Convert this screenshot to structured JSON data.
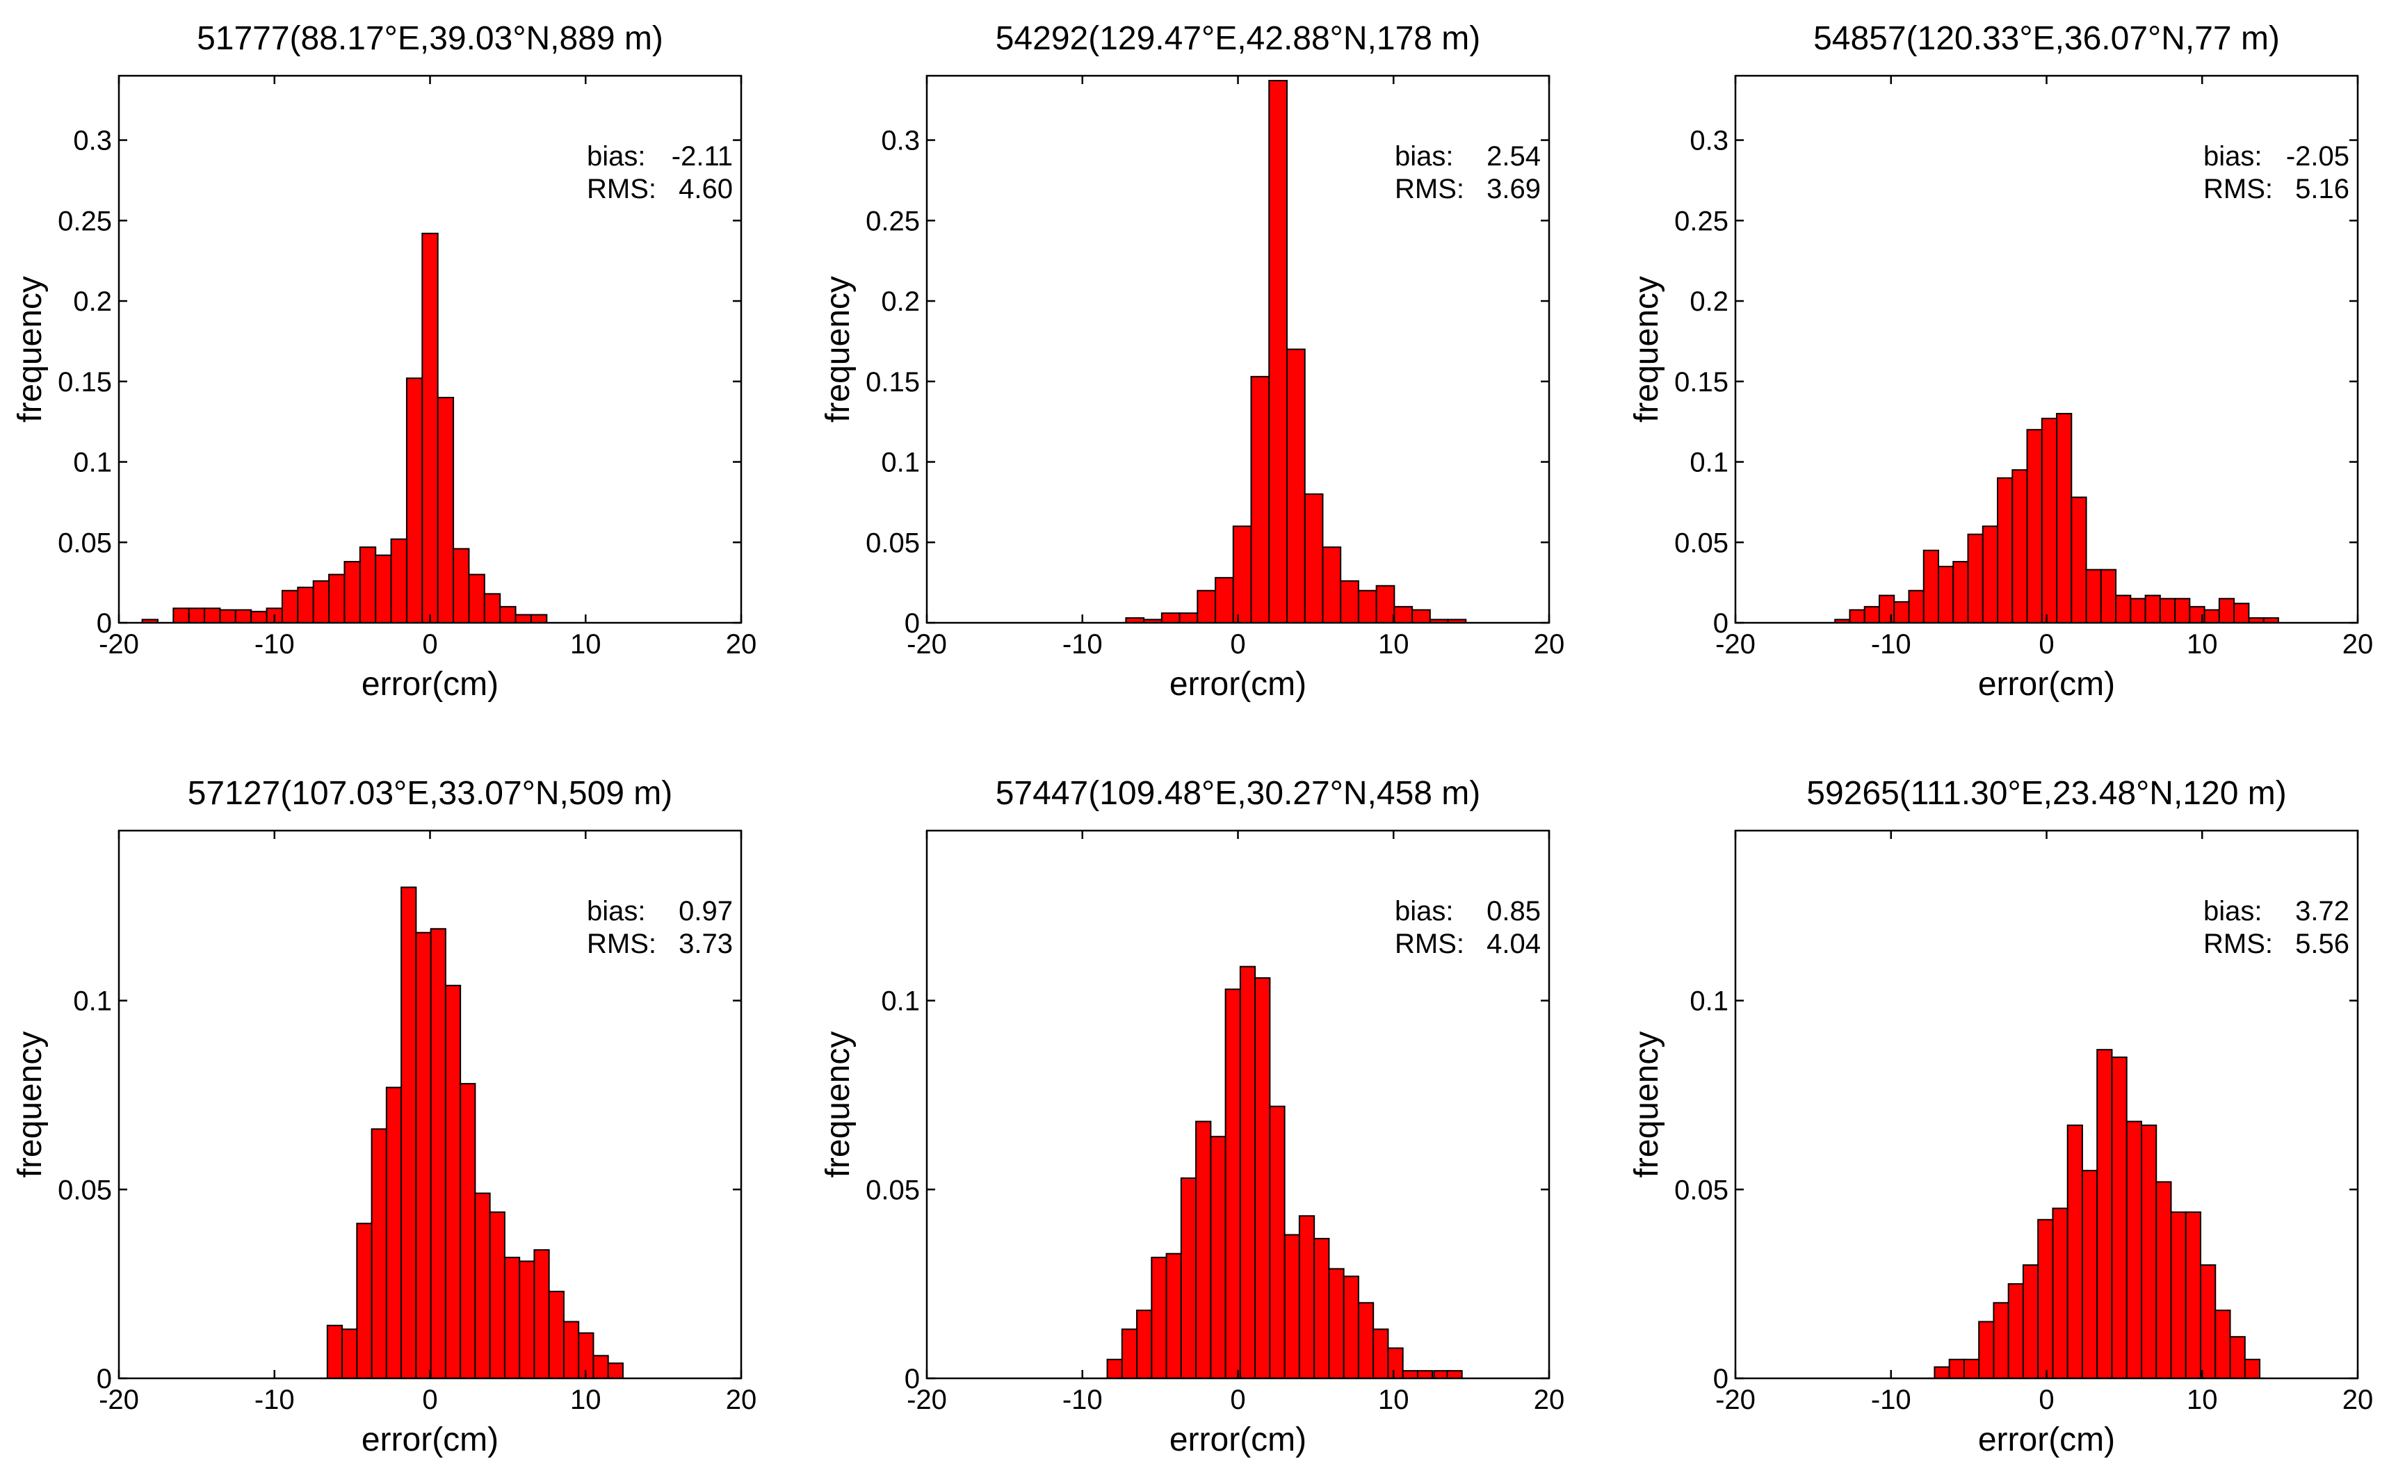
{
  "figure": {
    "bar_color": "#ff0000",
    "bar_edge_color": "#000000",
    "axis_color": "#000000"
  },
  "chart_data": [
    {
      "type": "bar",
      "title": "51777(88.17°E,39.03°N,889 m)",
      "xlabel": "error(cm)",
      "ylabel": "frequency",
      "xlim": [
        -20,
        20
      ],
      "ylim": [
        0,
        0.34
      ],
      "xticks": [
        -20,
        -10,
        0,
        10,
        20
      ],
      "xtick_labels": [
        "-20",
        "-10",
        "0",
        "10",
        "20"
      ],
      "yticks": [
        0,
        0.05,
        0.1,
        0.15,
        0.2,
        0.25,
        0.3
      ],
      "ytick_labels": [
        "0",
        "0.05",
        "0.1",
        "0.15",
        "0.2",
        "0.25",
        "0.3"
      ],
      "bin_width": 1,
      "bins_start": [
        -18.5,
        -16.5,
        -15.5,
        -14.5,
        -13.5,
        -12.5,
        -11.5,
        -10.5,
        -9.5,
        -8.5,
        -7.5,
        -6.5,
        -5.5,
        -4.5,
        -3.5,
        -2.5,
        -1.5,
        -0.5,
        0.5,
        1.5,
        2.5,
        3.5,
        4.5,
        5.5,
        6.5
      ],
      "values": [
        0.002,
        0.009,
        0.009,
        0.009,
        0.008,
        0.008,
        0.007,
        0.009,
        0.02,
        0.022,
        0.026,
        0.03,
        0.038,
        0.047,
        0.042,
        0.052,
        0.152,
        0.242,
        0.14,
        0.046,
        0.03,
        0.018,
        0.01,
        0.005,
        0.005
      ],
      "annotation": {
        "bias_label": "bias:",
        "bias_value": "-2.11",
        "rms_label": "RMS:",
        "rms_value": "4.60"
      }
    },
    {
      "type": "bar",
      "title": "54292(129.47°E,42.88°N,178 m)",
      "xlabel": "error(cm)",
      "ylabel": "frequency",
      "xlim": [
        -20,
        20
      ],
      "ylim": [
        0,
        0.34
      ],
      "xticks": [
        -20,
        -10,
        0,
        10,
        20
      ],
      "xtick_labels": [
        "-20",
        "-10",
        "0",
        "10",
        "20"
      ],
      "yticks": [
        0,
        0.05,
        0.1,
        0.15,
        0.2,
        0.25,
        0.3
      ],
      "ytick_labels": [
        "0",
        "0.05",
        "0.1",
        "0.15",
        "0.2",
        "0.25",
        "0.3"
      ],
      "bin_width": 1.15,
      "bins_start": [
        -7.2,
        -6.05,
        -4.9,
        -3.75,
        -2.6,
        -1.45,
        -0.3,
        0.85,
        2.0,
        3.15,
        4.3,
        5.45,
        6.6,
        7.75,
        8.9,
        10.05,
        11.2,
        12.35,
        13.5
      ],
      "values": [
        0.003,
        0.002,
        0.006,
        0.006,
        0.02,
        0.028,
        0.06,
        0.153,
        0.337,
        0.17,
        0.08,
        0.047,
        0.026,
        0.02,
        0.023,
        0.01,
        0.008,
        0.002,
        0.002
      ],
      "annotation": {
        "bias_label": "bias:",
        "bias_value": "2.54",
        "rms_label": "RMS:",
        "rms_value": "3.69"
      }
    },
    {
      "type": "bar",
      "title": "54857(120.33°E,36.07°N,77 m)",
      "xlabel": "error(cm)",
      "ylabel": "frequency",
      "xlim": [
        -20,
        20
      ],
      "ylim": [
        0,
        0.34
      ],
      "xticks": [
        -20,
        -10,
        0,
        10,
        20
      ],
      "xtick_labels": [
        "-20",
        "-10",
        "0",
        "10",
        "20"
      ],
      "yticks": [
        0,
        0.05,
        0.1,
        0.15,
        0.2,
        0.25,
        0.3
      ],
      "ytick_labels": [
        "0",
        "0.05",
        "0.1",
        "0.15",
        "0.2",
        "0.25",
        "0.3"
      ],
      "bin_width": 0.95,
      "bins_start": [
        -13.6,
        -12.65,
        -11.7,
        -10.75,
        -9.8,
        -8.85,
        -7.9,
        -6.95,
        -6.0,
        -5.05,
        -4.1,
        -3.15,
        -2.2,
        -1.25,
        -0.3,
        0.65,
        1.6,
        2.55,
        3.5,
        4.45,
        5.4,
        6.35,
        7.3,
        8.25,
        9.2,
        10.15,
        11.1,
        12.05,
        13.0,
        13.95
      ],
      "values": [
        0.002,
        0.008,
        0.01,
        0.017,
        0.013,
        0.02,
        0.045,
        0.035,
        0.038,
        0.055,
        0.06,
        0.09,
        0.095,
        0.12,
        0.127,
        0.13,
        0.078,
        0.033,
        0.033,
        0.017,
        0.015,
        0.017,
        0.015,
        0.015,
        0.01,
        0.008,
        0.015,
        0.012,
        0.003,
        0.003
      ],
      "annotation": {
        "bias_label": "bias:",
        "bias_value": "-2.05",
        "rms_label": "RMS:",
        "rms_value": "5.16"
      }
    },
    {
      "type": "bar",
      "title": "57127(107.03°E,33.07°N,509 m)",
      "xlabel": "error(cm)",
      "ylabel": "frequency",
      "xlim": [
        -20,
        20
      ],
      "ylim": [
        0,
        0.145
      ],
      "xticks": [
        -20,
        -10,
        0,
        10,
        20
      ],
      "xtick_labels": [
        "-20",
        "-10",
        "0",
        "10",
        "20"
      ],
      "yticks": [
        0,
        0.05,
        0.1
      ],
      "ytick_labels": [
        "0",
        "0.05",
        "0.1"
      ],
      "bin_width": 0.95,
      "bins_start": [
        -6.6,
        -5.65,
        -4.7,
        -3.75,
        -2.8,
        -1.85,
        -0.9,
        0.05,
        1.0,
        1.95,
        2.9,
        3.85,
        4.8,
        5.75,
        6.7,
        7.65,
        8.6,
        9.55,
        10.5,
        11.45
      ],
      "values": [
        0.014,
        0.013,
        0.041,
        0.066,
        0.077,
        0.13,
        0.118,
        0.119,
        0.104,
        0.078,
        0.049,
        0.044,
        0.032,
        0.031,
        0.034,
        0.023,
        0.015,
        0.012,
        0.006,
        0.004
      ],
      "annotation": {
        "bias_label": "bias:",
        "bias_value": "0.97",
        "rms_label": "RMS:",
        "rms_value": "3.73"
      }
    },
    {
      "type": "bar",
      "title": "57447(109.48°E,30.27°N,458 m)",
      "xlabel": "error(cm)",
      "ylabel": "frequency",
      "xlim": [
        -20,
        20
      ],
      "ylim": [
        0,
        0.145
      ],
      "xticks": [
        -20,
        -10,
        0,
        10,
        20
      ],
      "xtick_labels": [
        "-20",
        "-10",
        "0",
        "10",
        "20"
      ],
      "yticks": [
        0,
        0.05,
        0.1
      ],
      "ytick_labels": [
        "0",
        "0.05",
        "0.1"
      ],
      "bin_width": 0.95,
      "bins_start": [
        -8.4,
        -7.45,
        -6.5,
        -5.55,
        -4.6,
        -3.65,
        -2.7,
        -1.75,
        -0.8,
        0.15,
        1.1,
        2.05,
        3.0,
        3.95,
        4.9,
        5.85,
        6.8,
        7.75,
        8.7,
        9.65,
        10.6,
        11.55,
        12.6,
        13.45
      ],
      "values": [
        0.005,
        0.013,
        0.018,
        0.032,
        0.033,
        0.053,
        0.068,
        0.064,
        0.103,
        0.109,
        0.106,
        0.072,
        0.038,
        0.043,
        0.037,
        0.029,
        0.027,
        0.02,
        0.013,
        0.008,
        0.002,
        0.002,
        0.002,
        0.002
      ],
      "annotation": {
        "bias_label": "bias:",
        "bias_value": "0.85",
        "rms_label": "RMS:",
        "rms_value": "4.04"
      }
    },
    {
      "type": "bar",
      "title": "59265(111.30°E,23.48°N,120 m)",
      "xlabel": "error(cm)",
      "ylabel": "frequency",
      "xlim": [
        -20,
        20
      ],
      "ylim": [
        0,
        0.145
      ],
      "xticks": [
        -20,
        -10,
        0,
        10,
        20
      ],
      "xtick_labels": [
        "-20",
        "-10",
        "0",
        "10",
        "20"
      ],
      "yticks": [
        0,
        0.05,
        0.1
      ],
      "ytick_labels": [
        "0",
        "0.05",
        "0.1"
      ],
      "bin_width": 0.95,
      "bins_start": [
        -7.2,
        -6.25,
        -5.3,
        -4.35,
        -3.4,
        -2.45,
        -1.5,
        -0.55,
        0.4,
        1.35,
        2.3,
        3.25,
        4.2,
        5.15,
        6.1,
        7.05,
        8.0,
        8.95,
        9.9,
        10.85,
        11.8,
        12.75
      ],
      "values": [
        0.003,
        0.005,
        0.005,
        0.015,
        0.02,
        0.025,
        0.03,
        0.042,
        0.045,
        0.067,
        0.055,
        0.087,
        0.085,
        0.068,
        0.067,
        0.052,
        0.044,
        0.044,
        0.03,
        0.018,
        0.011,
        0.005
      ],
      "annotation": {
        "bias_label": "bias:",
        "bias_value": "3.72",
        "rms_label": "RMS:",
        "rms_value": "5.56"
      }
    }
  ]
}
